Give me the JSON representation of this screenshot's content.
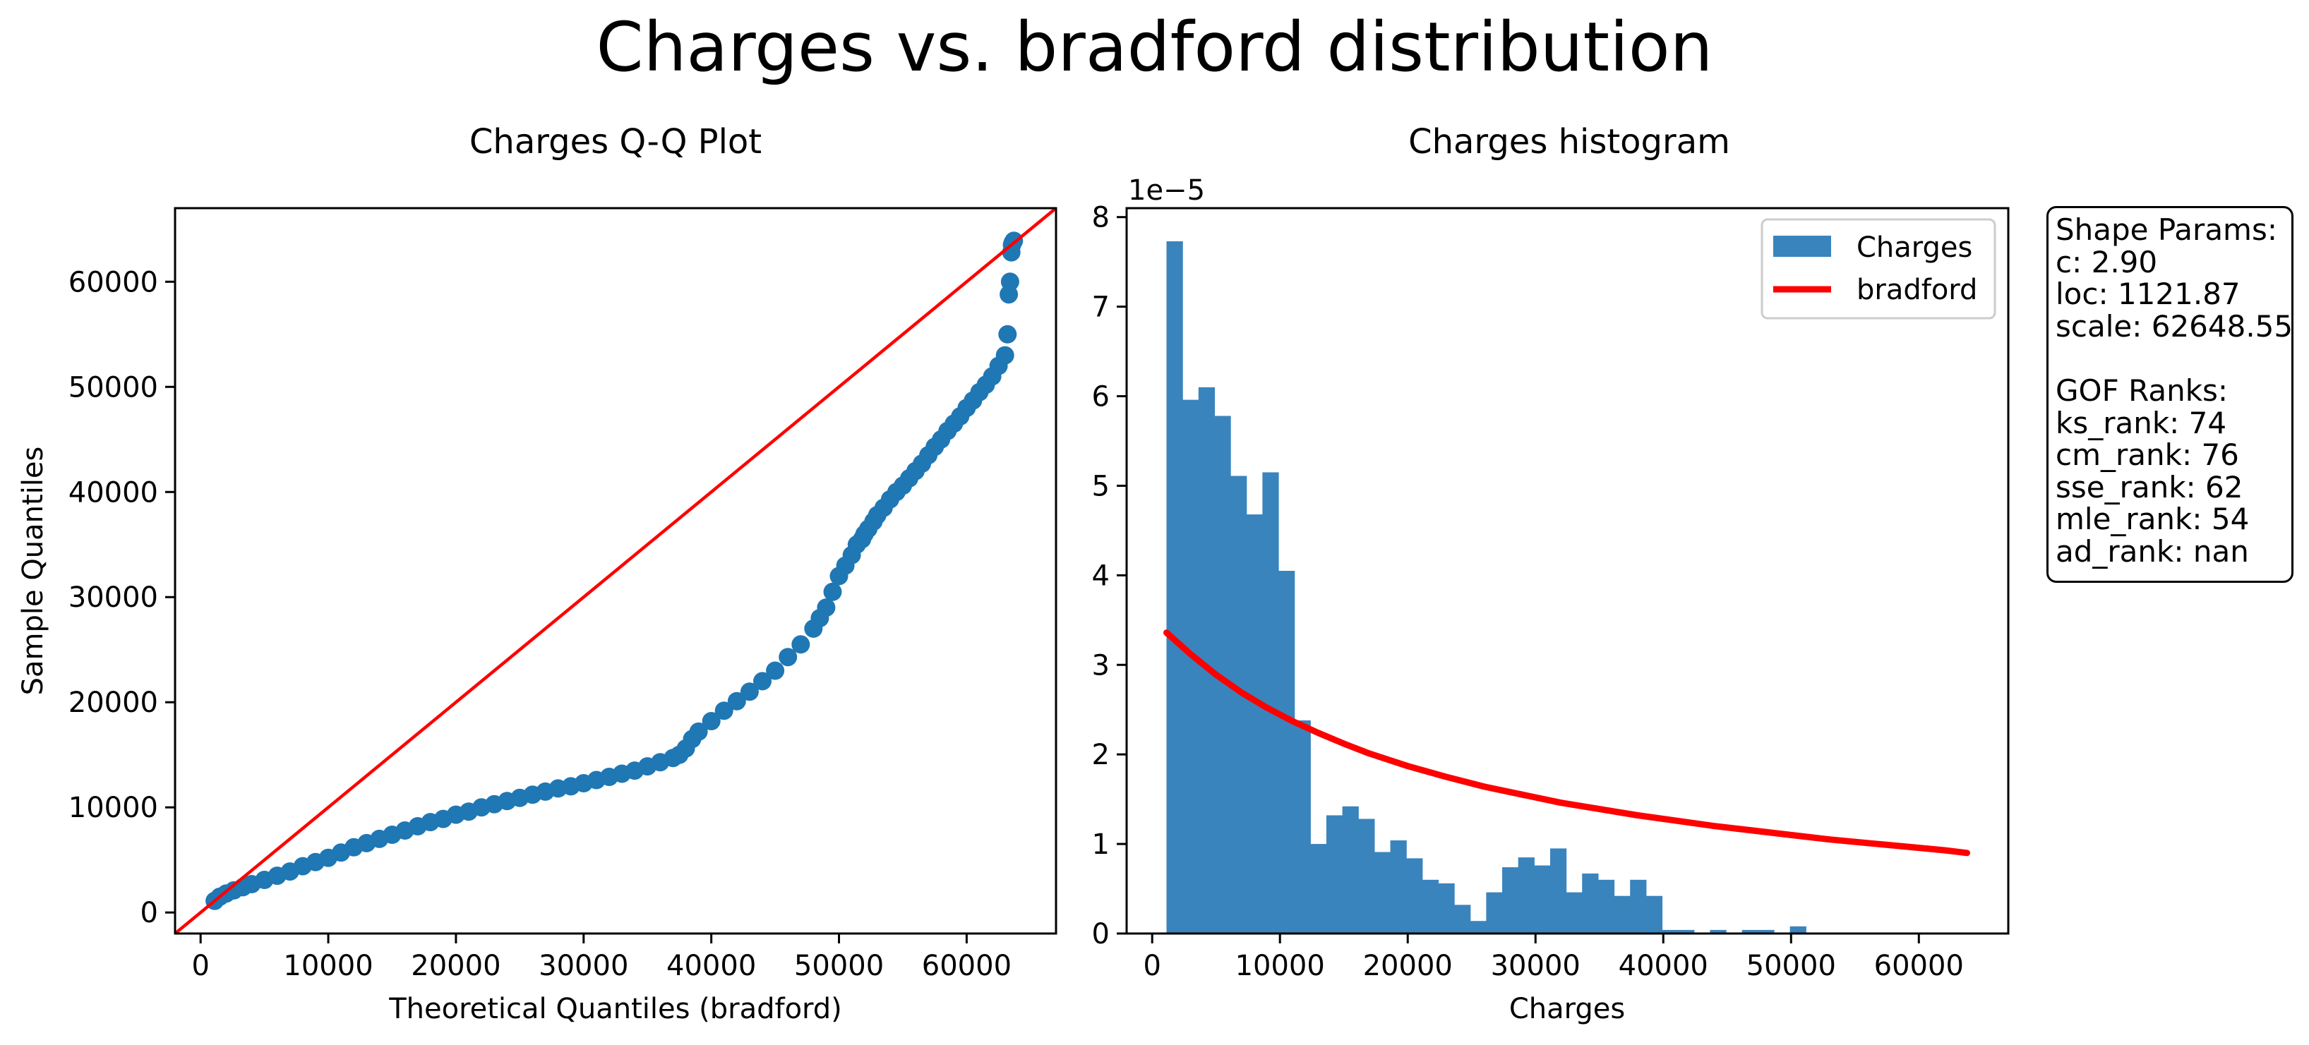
{
  "figure": {
    "title": "Charges vs. bradford distribution",
    "colors": {
      "points": "#1f77b4",
      "bars": "#3a84bd",
      "line": "#ff0000",
      "fit_curve": "#ff0000"
    }
  },
  "info_box": {
    "text": "Shape Params:\nc: 2.90\nloc: 1121.87\nscale: 62648.55\n\nGOF Ranks:\nks_rank: 74\ncm_rank: 76\nsse_rank: 62\nmle_rank: 54\nad_rank: nan"
  },
  "chart_data": [
    {
      "type": "scatter",
      "title": "Charges Q-Q Plot",
      "xlabel": "Theoretical Quantiles (bradford)",
      "ylabel": "Sample Quantiles",
      "xlim": [
        -2000,
        67000
      ],
      "ylim": [
        -2000,
        67000
      ],
      "xticks": [
        0,
        10000,
        20000,
        30000,
        40000,
        50000,
        60000
      ],
      "yticks": [
        0,
        10000,
        20000,
        30000,
        40000,
        50000,
        60000
      ],
      "reference_line": {
        "x": [
          -2000,
          67000
        ],
        "y": [
          -2000,
          67000
        ]
      },
      "series": [
        {
          "name": "Sample quantiles",
          "x": [
            1100,
            1500,
            2000,
            2600,
            3300,
            4000,
            5000,
            6000,
            7000,
            8000,
            9000,
            10000,
            11000,
            12000,
            13000,
            14000,
            15000,
            16000,
            17000,
            18000,
            19000,
            20000,
            21000,
            22000,
            23000,
            24000,
            25000,
            26000,
            27000,
            28000,
            29000,
            30000,
            31000,
            32000,
            33000,
            34000,
            35000,
            36000,
            37000,
            37500,
            38000,
            38500,
            39000,
            40000,
            41000,
            42000,
            43000,
            44000,
            45000,
            46000,
            47000,
            48000,
            48500,
            49000,
            49500,
            50000,
            50500,
            51000,
            51400,
            51800,
            52000,
            52300,
            52700,
            53000,
            53500,
            54000,
            54500,
            55000,
            55500,
            56000,
            56500,
            57000,
            57500,
            58000,
            58500,
            59000,
            59500,
            60000,
            60500,
            61000,
            61500,
            62000,
            62500,
            63000,
            63200,
            63300,
            63400,
            63500,
            63550,
            63600,
            63650,
            63700
          ],
          "y": [
            1100,
            1500,
            1800,
            2100,
            2400,
            2700,
            3100,
            3500,
            3900,
            4400,
            4800,
            5200,
            5700,
            6200,
            6600,
            7000,
            7400,
            7800,
            8200,
            8600,
            8900,
            9300,
            9600,
            10000,
            10300,
            10600,
            10900,
            11200,
            11500,
            11800,
            12000,
            12300,
            12600,
            12900,
            13200,
            13500,
            13900,
            14300,
            14700,
            15000,
            15600,
            16500,
            17200,
            18200,
            19200,
            20100,
            21000,
            22000,
            23000,
            24300,
            25500,
            27000,
            28000,
            29000,
            30500,
            32000,
            33000,
            34000,
            35000,
            35500,
            36000,
            36500,
            37200,
            37800,
            38500,
            39300,
            40000,
            40600,
            41300,
            42000,
            42700,
            43500,
            44300,
            45000,
            45800,
            46500,
            47200,
            48000,
            48700,
            49500,
            50200,
            51000,
            52000,
            53000,
            55000,
            58800,
            60000,
            62800,
            63500,
            63700,
            63800,
            63900
          ]
        }
      ]
    },
    {
      "type": "bar",
      "title": "Charges histogram",
      "xlabel": "Charges",
      "ylabel": "",
      "y_scale_label": "1e−5",
      "xlim": [
        -2000,
        67000
      ],
      "ylim": [
        0,
        8.1
      ],
      "xticks": [
        0,
        10000,
        20000,
        30000,
        40000,
        50000,
        60000
      ],
      "yticks": [
        0,
        1,
        2,
        3,
        4,
        5,
        6,
        7,
        8
      ],
      "legend": {
        "position": "top-right",
        "entries": [
          "Charges",
          "bradford"
        ]
      },
      "bin_start": 1121.87,
      "bin_width": 1250.96,
      "series": [
        {
          "name": "Charges",
          "values": [
            7.73,
            5.96,
            6.1,
            5.78,
            5.11,
            4.68,
            5.15,
            4.05,
            2.38,
            1.0,
            1.32,
            1.42,
            1.28,
            0.91,
            1.04,
            0.84,
            0.6,
            0.56,
            0.32,
            0.14,
            0.46,
            0.74,
            0.85,
            0.76,
            0.95,
            0.46,
            0.67,
            0.6,
            0.42,
            0.6,
            0.42,
            0.04,
            0.04,
            0.0,
            0.04,
            0.0,
            0.04,
            0.04,
            0.0,
            0.08
          ]
        },
        {
          "name": "bradford",
          "type": "line",
          "x": [
            1122,
            3000,
            5000,
            7000,
            9000,
            11000,
            13000,
            15000,
            17000,
            20000,
            23000,
            26000,
            29000,
            32000,
            35000,
            38000,
            41000,
            44000,
            47000,
            50000,
            53000,
            56000,
            59000,
            62000,
            63770
          ],
          "y": [
            3.36,
            3.12,
            2.89,
            2.69,
            2.52,
            2.37,
            2.24,
            2.12,
            2.01,
            1.87,
            1.75,
            1.64,
            1.55,
            1.46,
            1.39,
            1.32,
            1.26,
            1.2,
            1.15,
            1.1,
            1.05,
            1.01,
            0.97,
            0.93,
            0.9
          ]
        }
      ]
    }
  ]
}
